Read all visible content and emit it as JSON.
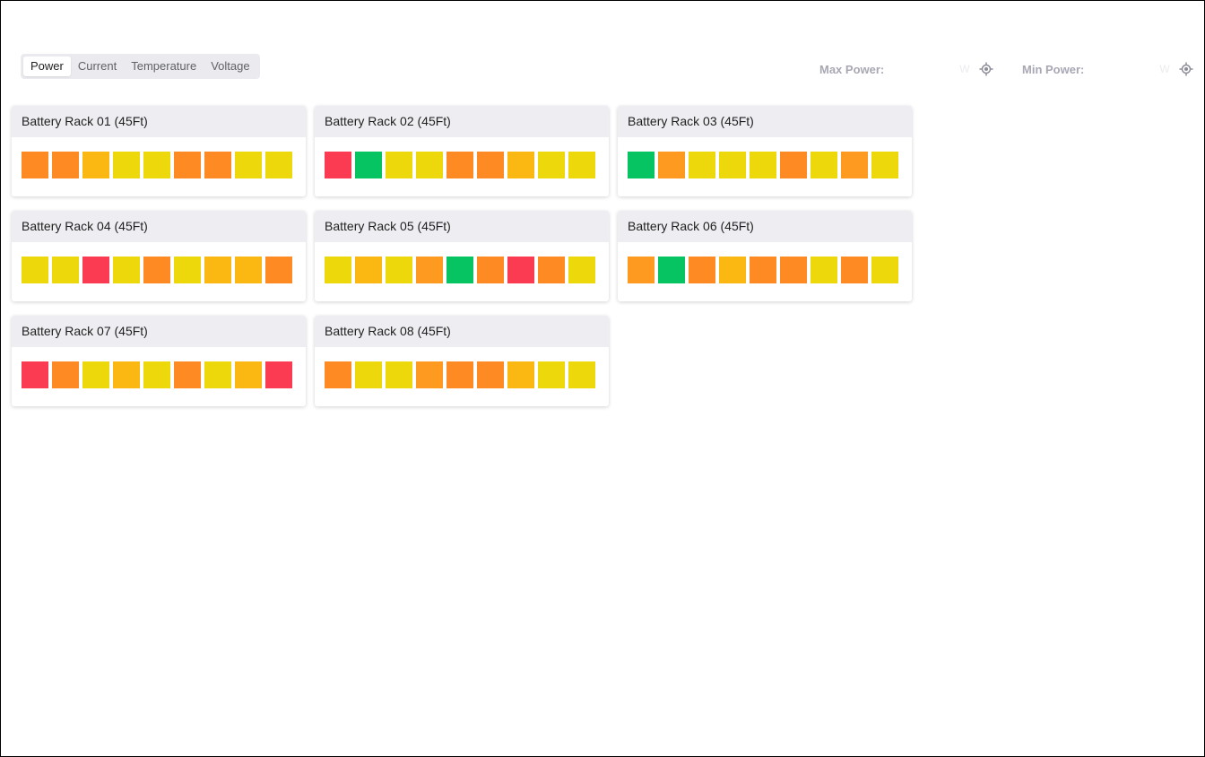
{
  "tabs": [
    {
      "label": "Power",
      "active": true
    },
    {
      "label": "Current",
      "active": false
    },
    {
      "label": "Temperature",
      "active": false
    },
    {
      "label": "Voltage",
      "active": false
    }
  ],
  "stats": {
    "max": {
      "label": "Max Power:",
      "value": "",
      "unit": "W"
    },
    "min": {
      "label": "Min Power:",
      "value": "",
      "unit": "W"
    }
  },
  "colors": {
    "red": "#fb3b52",
    "green": "#05c461",
    "orange": "#fd8a23",
    "amber": "#fe9a1f",
    "gold": "#fbb813",
    "yellow": "#ecd80b"
  },
  "racks": [
    {
      "title": "Battery Rack 01 (45Ft)",
      "cells": [
        "orange",
        "orange",
        "gold",
        "yellow",
        "yellow",
        "orange",
        "orange",
        "yellow",
        "yellow"
      ]
    },
    {
      "title": "Battery Rack 02 (45Ft)",
      "cells": [
        "red",
        "green",
        "yellow",
        "yellow",
        "orange",
        "orange",
        "gold",
        "yellow",
        "yellow"
      ]
    },
    {
      "title": "Battery Rack 03 (45Ft)",
      "cells": [
        "green",
        "amber",
        "yellow",
        "yellow",
        "yellow",
        "orange",
        "yellow",
        "amber",
        "yellow"
      ]
    },
    {
      "title": "Battery Rack 04 (45Ft)",
      "cells": [
        "yellow",
        "yellow",
        "red",
        "yellow",
        "orange",
        "yellow",
        "gold",
        "gold",
        "orange"
      ]
    },
    {
      "title": "Battery Rack 05 (45Ft)",
      "cells": [
        "yellow",
        "gold",
        "yellow",
        "amber",
        "green",
        "orange",
        "red",
        "orange",
        "yellow"
      ]
    },
    {
      "title": "Battery Rack 06 (45Ft)",
      "cells": [
        "amber",
        "green",
        "orange",
        "gold",
        "orange",
        "orange",
        "yellow",
        "orange",
        "yellow"
      ]
    },
    {
      "title": "Battery Rack 07 (45Ft)",
      "cells": [
        "red",
        "orange",
        "yellow",
        "gold",
        "yellow",
        "orange",
        "yellow",
        "gold",
        "red"
      ]
    },
    {
      "title": "Battery Rack 08 (45Ft)",
      "cells": [
        "orange",
        "yellow",
        "yellow",
        "amber",
        "orange",
        "orange",
        "gold",
        "yellow",
        "yellow"
      ]
    }
  ]
}
